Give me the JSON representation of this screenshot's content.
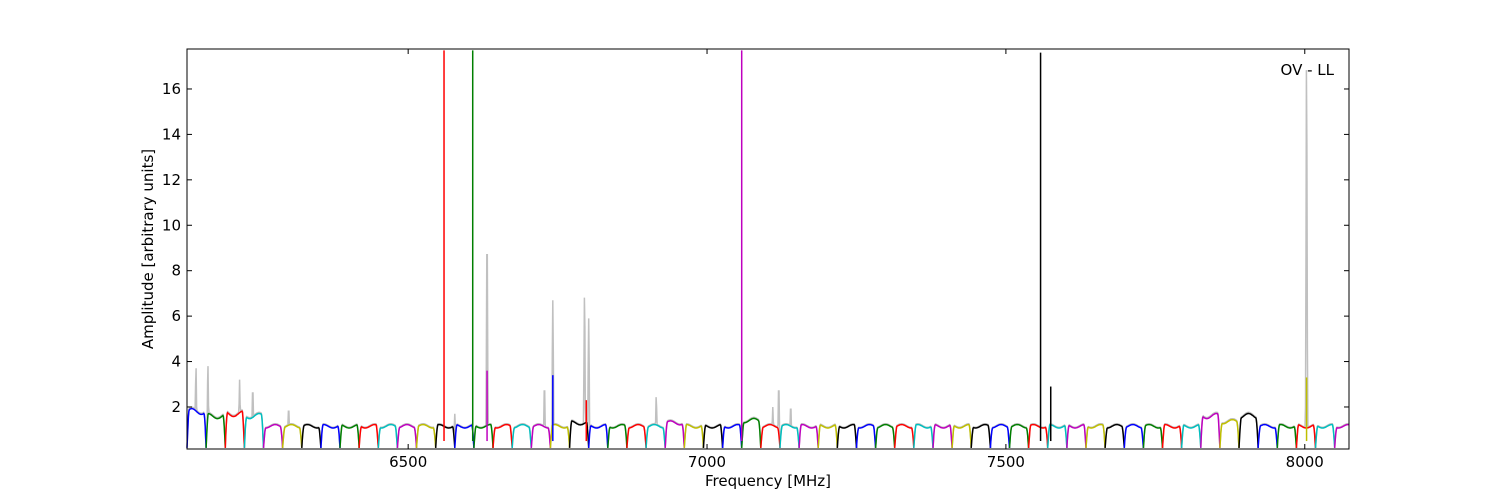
{
  "chart_data": {
    "type": "line",
    "title": "",
    "annotation": "OV - LL",
    "xlabel": "Frequency [MHz]",
    "ylabel": "Amplitude [arbitrary units]",
    "xlim": [
      6130,
      8074
    ],
    "ylim": [
      0.15,
      17.76
    ],
    "xticks": [
      6500,
      7000,
      7500,
      8000
    ],
    "yticks": [
      2,
      4,
      6,
      8,
      10,
      12,
      14,
      16
    ],
    "grid": false,
    "colors": {
      "cycle": [
        "#0000ff",
        "#007f00",
        "#ff0000",
        "#00bfbf",
        "#bf00bf",
        "#bfbf00",
        "#000000"
      ],
      "background_trace": "#c0c0c0"
    },
    "bands": {
      "start": 6130,
      "width": 32,
      "count": 61,
      "base_level": 1.15,
      "levels": {
        "0": 1.8,
        "1": 1.6,
        "2": 1.7,
        "3": 1.6,
        "20": 1.3,
        "25": 1.3,
        "29": 1.4,
        "53": 1.6,
        "54": 1.35,
        "55": 1.6
      }
    },
    "spikes": [
      {
        "x": 6560,
        "y": 17.7,
        "color": "#ff0000"
      },
      {
        "x": 6608,
        "y": 17.7,
        "color": "#007f00"
      },
      {
        "x": 6632,
        "y": 3.6,
        "color": "#bf00bf"
      },
      {
        "x": 6742,
        "y": 3.4,
        "color": "#0000ff"
      },
      {
        "x": 6798,
        "y": 2.3,
        "color": "#ff0000"
      },
      {
        "x": 7058,
        "y": 17.7,
        "color": "#bf00bf"
      },
      {
        "x": 7558,
        "y": 17.6,
        "color": "#000000"
      },
      {
        "x": 7575,
        "y": 2.9,
        "color": "#000000"
      },
      {
        "x": 8003,
        "y": 3.3,
        "color": "#bfbf00"
      }
    ],
    "background_peaks": [
      [
        6145,
        3.8
      ],
      [
        6165,
        3.9
      ],
      [
        6218,
        3.2
      ],
      [
        6240,
        2.9
      ],
      [
        6300,
        2.0
      ],
      [
        6578,
        1.7
      ],
      [
        6632,
        9.7
      ],
      [
        6728,
        3.0
      ],
      [
        6742,
        6.7
      ],
      [
        6795,
        7.0
      ],
      [
        6802,
        5.9
      ],
      [
        6915,
        2.5
      ],
      [
        7110,
        2.0
      ],
      [
        7120,
        3.0
      ],
      [
        7140,
        2.1
      ],
      [
        8003,
        17.3
      ]
    ]
  }
}
